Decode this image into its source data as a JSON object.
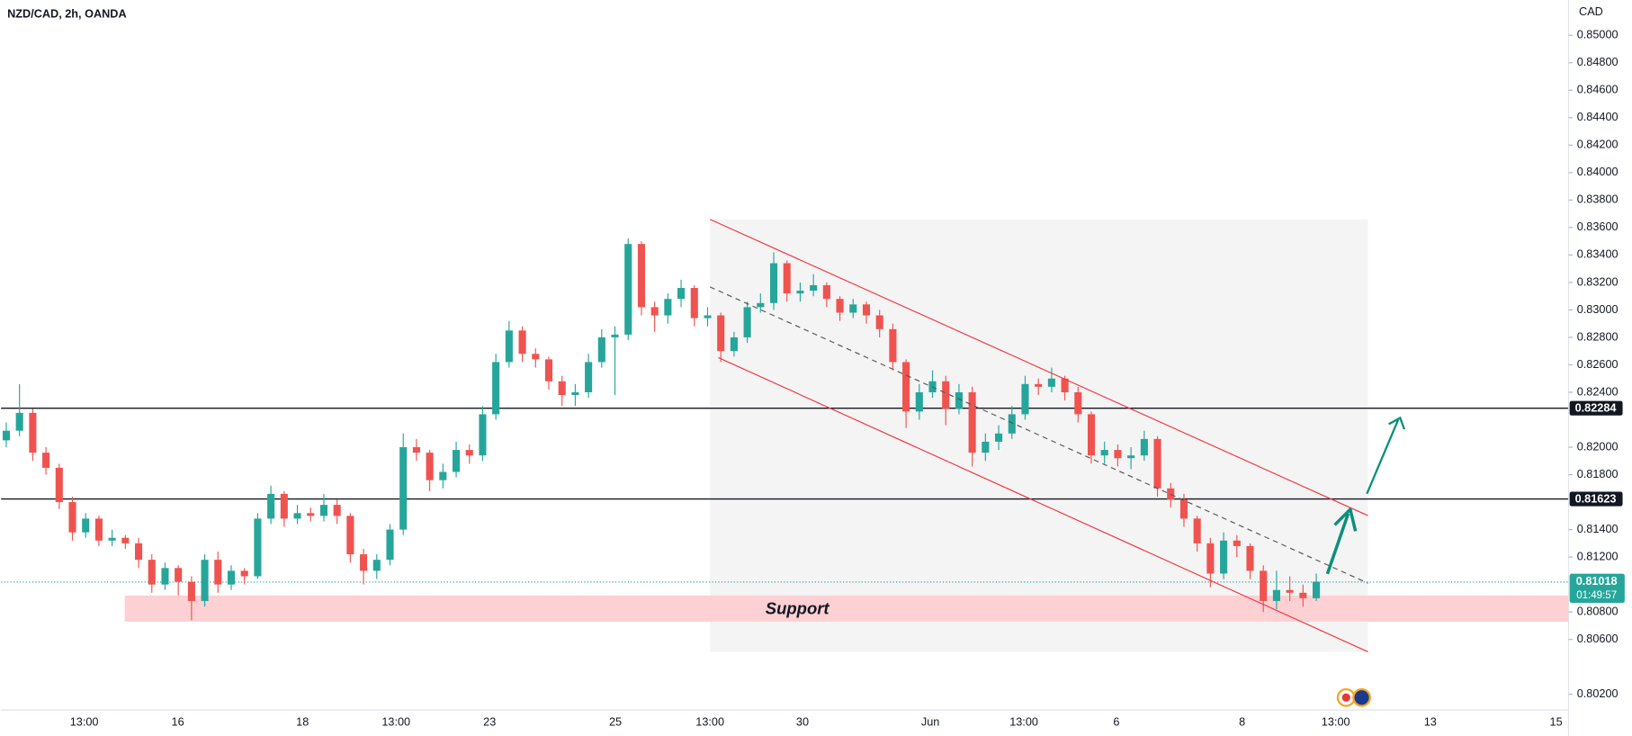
{
  "chart_data": {
    "type": "candlestick",
    "title": "NZD/CAD, 2h, OANDA",
    "y_axis_label": "CAD",
    "up_color": "#26a69a",
    "down_color": "#ef5350",
    "x_labels": [
      "13:00",
      "16",
      "18",
      "13:00",
      "23",
      "25",
      "13:00",
      "30",
      "Jun",
      "13:00",
      "6",
      "8",
      "13:00",
      "13",
      "15"
    ],
    "ylim": [
      0.80086,
      0.85257
    ],
    "yticks": [
      {
        "value": 0.85,
        "label": "0.85000"
      },
      {
        "value": 0.848,
        "label": "0.84800"
      },
      {
        "value": 0.846,
        "label": "0.84600"
      },
      {
        "value": 0.844,
        "label": "0.84400"
      },
      {
        "value": 0.842,
        "label": "0.84200"
      },
      {
        "value": 0.84,
        "label": "0.84000"
      },
      {
        "value": 0.838,
        "label": "0.83800"
      },
      {
        "value": 0.836,
        "label": "0.83600"
      },
      {
        "value": 0.834,
        "label": "0.83400"
      },
      {
        "value": 0.832,
        "label": "0.83200"
      },
      {
        "value": 0.83,
        "label": "0.83000"
      },
      {
        "value": 0.828,
        "label": "0.82800"
      },
      {
        "value": 0.826,
        "label": "0.82600"
      },
      {
        "value": 0.824,
        "label": "0.82400"
      },
      {
        "value": 0.82,
        "label": "0.82000"
      },
      {
        "value": 0.818,
        "label": "0.81800"
      },
      {
        "value": 0.814,
        "label": "0.81400"
      },
      {
        "value": 0.812,
        "label": "0.81200"
      },
      {
        "value": 0.808,
        "label": "0.80800"
      },
      {
        "value": 0.806,
        "label": "0.80600"
      },
      {
        "value": 0.802,
        "label": "0.80200"
      }
    ],
    "levels": [
      0.82284,
      0.81623
    ],
    "current_price": 0.81018,
    "countdown": "01:49:57",
    "support": {
      "label": "Support",
      "range": [
        0.8073,
        0.8092
      ],
      "color": "#fdd0d3"
    },
    "open": [
      0.8205,
      0.8212,
      0.8225,
      0.8196,
      0.8185,
      0.816,
      0.8138,
      0.8148,
      0.8132,
      0.8134,
      0.813,
      0.8118,
      0.81,
      0.8112,
      0.8102,
      0.8088,
      0.8118,
      0.81,
      0.811,
      0.8106,
      0.8148,
      0.8166,
      0.8148,
      0.8152,
      0.815,
      0.8158,
      0.815,
      0.8122,
      0.811,
      0.8118,
      0.814,
      0.82,
      0.8196,
      0.8176,
      0.8182,
      0.8198,
      0.8194,
      0.8224,
      0.8262,
      0.8285,
      0.8268,
      0.8264,
      0.8248,
      0.8238,
      0.824,
      0.8262,
      0.828,
      0.8282,
      0.8348,
      0.8302,
      0.8296,
      0.8308,
      0.8316,
      0.8294,
      0.8296,
      0.827,
      0.828,
      0.8302,
      0.8305,
      0.8334,
      0.8312,
      0.8314,
      0.8318,
      0.8308,
      0.8298,
      0.8304,
      0.8296,
      0.8286,
      0.8262,
      0.8226,
      0.824,
      0.8248,
      0.8228,
      0.824,
      0.8196,
      0.8204,
      0.821,
      0.8224,
      0.8246,
      0.8244,
      0.825,
      0.824,
      0.8224,
      0.8194,
      0.8198,
      0.8192,
      0.8194,
      0.8206,
      0.817,
      0.8162,
      0.8148,
      0.813,
      0.8108,
      0.8132,
      0.8128,
      0.811,
      0.8088,
      0.8096,
      0.8094,
      0.809
    ],
    "high": [
      0.8218,
      0.8246,
      0.8228,
      0.82,
      0.8188,
      0.8164,
      0.8152,
      0.815,
      0.814,
      0.8136,
      0.8134,
      0.8122,
      0.8116,
      0.8114,
      0.8106,
      0.8122,
      0.8124,
      0.8114,
      0.8112,
      0.8152,
      0.8172,
      0.8168,
      0.8158,
      0.8156,
      0.8166,
      0.8162,
      0.8152,
      0.8126,
      0.8122,
      0.8144,
      0.821,
      0.8206,
      0.8198,
      0.8188,
      0.8204,
      0.8202,
      0.823,
      0.8268,
      0.8292,
      0.8288,
      0.8272,
      0.8266,
      0.8252,
      0.8246,
      0.8268,
      0.8286,
      0.8288,
      0.8352,
      0.835,
      0.8306,
      0.8312,
      0.8322,
      0.8318,
      0.8302,
      0.8298,
      0.8284,
      0.8306,
      0.8312,
      0.8342,
      0.8336,
      0.832,
      0.8326,
      0.832,
      0.831,
      0.8308,
      0.8306,
      0.83,
      0.829,
      0.8264,
      0.8246,
      0.8256,
      0.8252,
      0.8246,
      0.8244,
      0.821,
      0.8216,
      0.823,
      0.8252,
      0.825,
      0.8258,
      0.8252,
      0.8244,
      0.8226,
      0.8204,
      0.8202,
      0.82,
      0.8212,
      0.8208,
      0.8174,
      0.8166,
      0.815,
      0.8134,
      0.8138,
      0.8136,
      0.813,
      0.8114,
      0.811,
      0.8106,
      0.81,
      0.8108
    ],
    "low": [
      0.82,
      0.8208,
      0.819,
      0.818,
      0.8155,
      0.8132,
      0.8134,
      0.8128,
      0.8128,
      0.8126,
      0.8112,
      0.8094,
      0.8096,
      0.8092,
      0.8074,
      0.8084,
      0.8094,
      0.8096,
      0.81,
      0.8104,
      0.8144,
      0.8142,
      0.8144,
      0.8146,
      0.8146,
      0.8144,
      0.8116,
      0.81,
      0.8104,
      0.8114,
      0.8136,
      0.819,
      0.8168,
      0.817,
      0.8178,
      0.8188,
      0.819,
      0.822,
      0.8258,
      0.8262,
      0.8258,
      0.8242,
      0.823,
      0.823,
      0.8236,
      0.8258,
      0.8238,
      0.8278,
      0.8296,
      0.8284,
      0.829,
      0.8302,
      0.8288,
      0.8288,
      0.8262,
      0.8266,
      0.8276,
      0.8298,
      0.83,
      0.8306,
      0.8306,
      0.831,
      0.8302,
      0.8292,
      0.8294,
      0.829,
      0.828,
      0.8256,
      0.8214,
      0.822,
      0.8236,
      0.8216,
      0.8224,
      0.8186,
      0.819,
      0.8198,
      0.8206,
      0.822,
      0.8238,
      0.824,
      0.8234,
      0.8218,
      0.8188,
      0.8188,
      0.8186,
      0.8184,
      0.819,
      0.8164,
      0.8156,
      0.8142,
      0.8124,
      0.8098,
      0.8104,
      0.812,
      0.8104,
      0.808,
      0.8082,
      0.8088,
      0.8084,
      0.8088
    ],
    "close": [
      0.8212,
      0.8225,
      0.8196,
      0.8185,
      0.816,
      0.8138,
      0.8148,
      0.8132,
      0.8134,
      0.813,
      0.8118,
      0.81,
      0.8112,
      0.8102,
      0.8088,
      0.8118,
      0.81,
      0.811,
      0.8106,
      0.8148,
      0.8166,
      0.8148,
      0.8152,
      0.815,
      0.8158,
      0.815,
      0.8122,
      0.811,
      0.8118,
      0.814,
      0.82,
      0.8196,
      0.8176,
      0.8182,
      0.8198,
      0.8194,
      0.8224,
      0.8262,
      0.8285,
      0.8268,
      0.8264,
      0.8248,
      0.8238,
      0.824,
      0.8262,
      0.828,
      0.8282,
      0.8348,
      0.8302,
      0.8296,
      0.8308,
      0.8316,
      0.8294,
      0.8296,
      0.827,
      0.828,
      0.8302,
      0.8305,
      0.8334,
      0.8312,
      0.8314,
      0.8318,
      0.8308,
      0.8298,
      0.8304,
      0.8296,
      0.8286,
      0.8262,
      0.8226,
      0.824,
      0.8248,
      0.8228,
      0.824,
      0.8196,
      0.8204,
      0.821,
      0.8224,
      0.8246,
      0.8244,
      0.825,
      0.824,
      0.8224,
      0.8194,
      0.8198,
      0.8192,
      0.8194,
      0.8206,
      0.817,
      0.8162,
      0.8148,
      0.813,
      0.8108,
      0.8132,
      0.8128,
      0.811,
      0.8088,
      0.8096,
      0.8094,
      0.809,
      0.8102
    ]
  }
}
